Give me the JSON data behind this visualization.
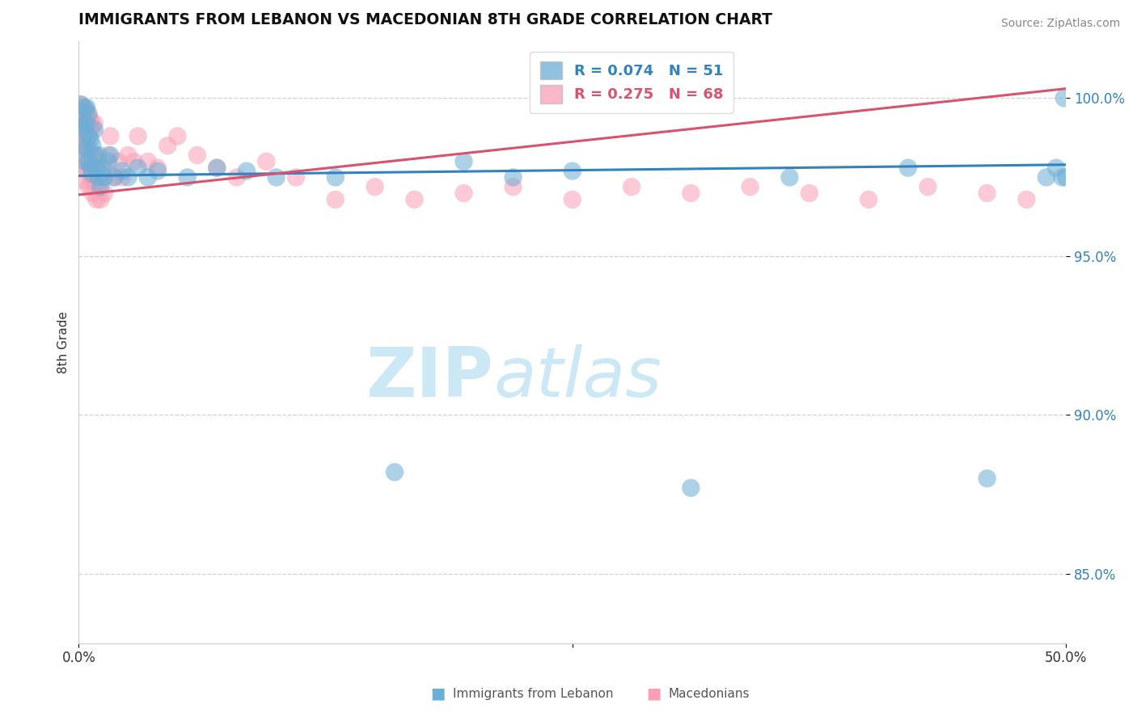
{
  "title": "IMMIGRANTS FROM LEBANON VS MACEDONIAN 8TH GRADE CORRELATION CHART",
  "source": "Source: ZipAtlas.com",
  "ylabel": "8th Grade",
  "xmin": 0.0,
  "xmax": 0.5,
  "ymin": 0.828,
  "ymax": 1.018,
  "yticks": [
    0.85,
    0.9,
    0.95,
    1.0
  ],
  "legend_blue_r": "R = 0.074",
  "legend_blue_n": "N = 51",
  "legend_pink_r": "R = 0.275",
  "legend_pink_n": "N = 68",
  "color_blue": "#6baed6",
  "color_pink": "#fa9fb5",
  "color_blue_line": "#3182bd",
  "color_pink_line": "#d9526e",
  "watermark_zip": "ZIP",
  "watermark_atlas": "atlas",
  "watermark_color": "#cde8f5",
  "blue_points_x": [
    0.001,
    0.001,
    0.002,
    0.002,
    0.003,
    0.003,
    0.003,
    0.004,
    0.004,
    0.004,
    0.005,
    0.005,
    0.005,
    0.006,
    0.006,
    0.007,
    0.007,
    0.008,
    0.008,
    0.009,
    0.01,
    0.01,
    0.011,
    0.012,
    0.013,
    0.015,
    0.016,
    0.018,
    0.022,
    0.025,
    0.03,
    0.035,
    0.04,
    0.055,
    0.07,
    0.085,
    0.1,
    0.13,
    0.16,
    0.195,
    0.22,
    0.25,
    0.31,
    0.36,
    0.42,
    0.46,
    0.49,
    0.495,
    0.498,
    0.499,
    0.5
  ],
  "blue_points_y": [
    0.991,
    0.998,
    0.985,
    0.993,
    0.98,
    0.99,
    0.997,
    0.984,
    0.992,
    0.997,
    0.98,
    0.988,
    0.995,
    0.978,
    0.987,
    0.976,
    0.985,
    0.982,
    0.99,
    0.978,
    0.975,
    0.982,
    0.972,
    0.978,
    0.975,
    0.98,
    0.982,
    0.975,
    0.977,
    0.975,
    0.978,
    0.975,
    0.977,
    0.975,
    0.978,
    0.977,
    0.975,
    0.975,
    0.882,
    0.98,
    0.975,
    0.977,
    0.877,
    0.975,
    0.978,
    0.88,
    0.975,
    0.978,
    0.975,
    1.0,
    0.975
  ],
  "pink_points_x": [
    0.001,
    0.001,
    0.002,
    0.002,
    0.002,
    0.003,
    0.003,
    0.003,
    0.004,
    0.004,
    0.004,
    0.005,
    0.005,
    0.005,
    0.006,
    0.006,
    0.006,
    0.007,
    0.007,
    0.008,
    0.008,
    0.009,
    0.009,
    0.01,
    0.01,
    0.011,
    0.012,
    0.013,
    0.014,
    0.015,
    0.016,
    0.018,
    0.02,
    0.022,
    0.025,
    0.028,
    0.03,
    0.035,
    0.04,
    0.045,
    0.05,
    0.06,
    0.07,
    0.08,
    0.095,
    0.11,
    0.13,
    0.15,
    0.17,
    0.195,
    0.22,
    0.25,
    0.28,
    0.31,
    0.34,
    0.37,
    0.4,
    0.43,
    0.46,
    0.48,
    0.001,
    0.002,
    0.003,
    0.004,
    0.005,
    0.006,
    0.007,
    0.008
  ],
  "pink_points_y": [
    0.985,
    0.992,
    0.978,
    0.987,
    0.995,
    0.974,
    0.982,
    0.99,
    0.977,
    0.985,
    0.993,
    0.972,
    0.98,
    0.988,
    0.975,
    0.983,
    0.991,
    0.97,
    0.978,
    0.973,
    0.982,
    0.968,
    0.977,
    0.972,
    0.98,
    0.968,
    0.975,
    0.97,
    0.977,
    0.982,
    0.988,
    0.975,
    0.98,
    0.975,
    0.982,
    0.98,
    0.988,
    0.98,
    0.978,
    0.985,
    0.988,
    0.982,
    0.978,
    0.975,
    0.98,
    0.975,
    0.968,
    0.972,
    0.968,
    0.97,
    0.972,
    0.968,
    0.972,
    0.97,
    0.972,
    0.97,
    0.968,
    0.972,
    0.97,
    0.968,
    0.998,
    0.997,
    0.995,
    0.996,
    0.994,
    0.993,
    0.991,
    0.992
  ],
  "blue_trend_x0": 0.0,
  "blue_trend_x1": 0.5,
  "blue_trend_y0": 0.9755,
  "blue_trend_y1": 0.979,
  "pink_trend_x0": 0.0,
  "pink_trend_x1": 0.5,
  "pink_trend_y0": 0.9695,
  "pink_trend_y1": 1.003
}
